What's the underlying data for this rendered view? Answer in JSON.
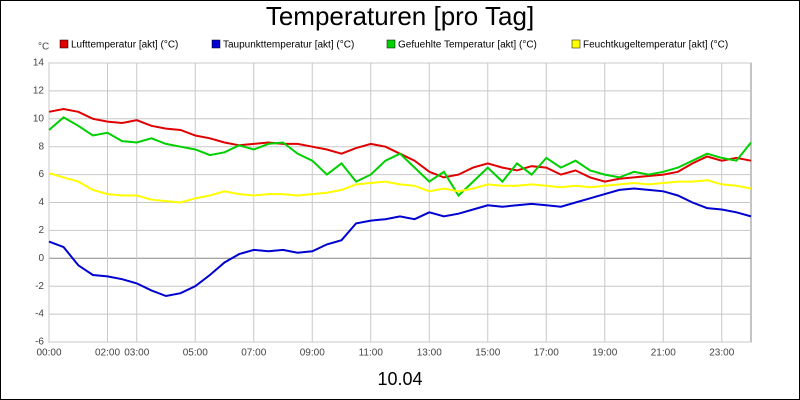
{
  "chart_data": {
    "type": "line",
    "title": "Temperaturen [pro Tag]",
    "y_unit": "°C",
    "x_label": "10.04",
    "x": [
      0,
      0.5,
      1,
      1.5,
      2,
      2.5,
      3,
      3.5,
      4,
      4.5,
      5,
      5.5,
      6,
      6.5,
      7,
      7.5,
      8,
      8.5,
      9,
      9.5,
      10,
      10.5,
      11,
      11.5,
      12,
      12.5,
      13,
      13.5,
      14,
      14.5,
      15,
      15.5,
      16,
      16.5,
      17,
      17.5,
      18,
      18.5,
      19,
      19.5,
      20,
      20.5,
      21,
      21.5,
      22,
      22.5,
      23,
      23.5,
      24
    ],
    "series": [
      {
        "name": "Lufttemperatur [akt] (°C)",
        "color": "#e00000",
        "values": [
          10.5,
          10.7,
          10.5,
          10.0,
          9.8,
          9.7,
          9.9,
          9.5,
          9.3,
          9.2,
          8.8,
          8.6,
          8.3,
          8.1,
          8.2,
          8.3,
          8.2,
          8.2,
          8.0,
          7.8,
          7.5,
          7.9,
          8.2,
          8.0,
          7.5,
          7.0,
          6.2,
          5.8,
          6.0,
          6.5,
          6.8,
          6.5,
          6.3,
          6.6,
          6.5,
          6.0,
          6.3,
          5.8,
          5.5,
          5.7,
          5.8,
          5.9,
          6.0,
          6.2,
          6.8,
          7.3,
          7.0,
          7.2,
          7.0
        ]
      },
      {
        "name": "Taupunkttemperatur [akt] (°C)",
        "color": "#0000d0",
        "values": [
          1.2,
          0.8,
          -0.5,
          -1.2,
          -1.3,
          -1.5,
          -1.8,
          -2.3,
          -2.7,
          -2.5,
          -2.0,
          -1.2,
          -0.3,
          0.3,
          0.6,
          0.5,
          0.6,
          0.4,
          0.5,
          1.0,
          1.3,
          2.5,
          2.7,
          2.8,
          3.0,
          2.8,
          3.3,
          3.0,
          3.2,
          3.5,
          3.8,
          3.7,
          3.8,
          3.9,
          3.8,
          3.7,
          4.0,
          4.3,
          4.6,
          4.9,
          5.0,
          4.9,
          4.8,
          4.5,
          4.0,
          3.6,
          3.5,
          3.3,
          3.0
        ]
      },
      {
        "name": "Gefuehlte Temperatur [akt] (°C)",
        "color": "#00d000",
        "values": [
          9.2,
          10.1,
          9.5,
          8.8,
          9.0,
          8.4,
          8.3,
          8.6,
          8.2,
          8.0,
          7.8,
          7.4,
          7.6,
          8.1,
          7.8,
          8.2,
          8.3,
          7.5,
          7.0,
          6.0,
          6.8,
          5.5,
          6.0,
          7.0,
          7.5,
          6.5,
          5.5,
          6.2,
          4.5,
          5.5,
          6.5,
          5.5,
          6.8,
          6.0,
          7.2,
          6.5,
          7.0,
          6.3,
          6.0,
          5.8,
          6.2,
          6.0,
          6.2,
          6.5,
          7.0,
          7.5,
          7.2,
          7.0,
          8.3
        ]
      },
      {
        "name": "Feuchtkugeltemperatur [akt] (°C)",
        "color": "#ffff00",
        "values": [
          6.1,
          5.8,
          5.5,
          4.9,
          4.6,
          4.5,
          4.5,
          4.2,
          4.1,
          4.0,
          4.3,
          4.5,
          4.8,
          4.6,
          4.5,
          4.6,
          4.6,
          4.5,
          4.6,
          4.7,
          4.9,
          5.3,
          5.4,
          5.5,
          5.3,
          5.2,
          4.8,
          5.0,
          4.8,
          5.0,
          5.3,
          5.2,
          5.2,
          5.3,
          5.2,
          5.1,
          5.2,
          5.1,
          5.2,
          5.3,
          5.4,
          5.3,
          5.4,
          5.5,
          5.5,
          5.6,
          5.3,
          5.2,
          5.0
        ]
      }
    ],
    "xlim": [
      0,
      24
    ],
    "xticks": [
      {
        "value": 0,
        "label": "00:00"
      },
      {
        "value": 2,
        "label": "02:00"
      },
      {
        "value": 3,
        "label": "03:00"
      },
      {
        "value": 5,
        "label": "05:00"
      },
      {
        "value": 7,
        "label": "07:00"
      },
      {
        "value": 9,
        "label": "09:00"
      },
      {
        "value": 11,
        "label": "11:00"
      },
      {
        "value": 13,
        "label": "13:00"
      },
      {
        "value": 15,
        "label": "15:00"
      },
      {
        "value": 17,
        "label": "17:00"
      },
      {
        "value": 19,
        "label": "19:00"
      },
      {
        "value": 21,
        "label": "21:00"
      },
      {
        "value": 23,
        "label": "23:00"
      }
    ],
    "ylim": [
      -6,
      14
    ],
    "yticks": [
      -6,
      -4,
      -2,
      0,
      2,
      4,
      6,
      8,
      10,
      12,
      14
    ],
    "grid": true
  }
}
